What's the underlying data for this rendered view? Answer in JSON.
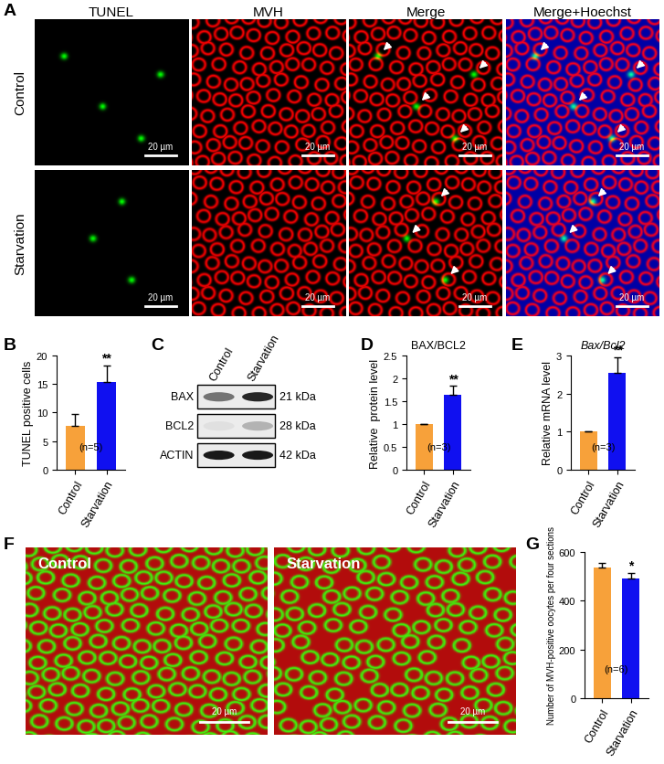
{
  "panels": {
    "A": {
      "letter": "A",
      "columns": [
        "TUNEL",
        "MVH",
        "Merge",
        "Merge+Hoechst"
      ],
      "rows": [
        "Control",
        "Starvation"
      ],
      "scale_bar": "20 µm"
    },
    "C": {
      "letter": "C",
      "lanes": [
        "Control",
        "Starvation"
      ],
      "bands": [
        {
          "protein": "BAX",
          "size": "21 kDa"
        },
        {
          "protein": "BCL2",
          "size": "28 kDa"
        },
        {
          "protein": "ACTIN",
          "size": "42 kDa"
        }
      ]
    },
    "F": {
      "letter": "F",
      "images": [
        "Control",
        "Starvation"
      ],
      "scale_bar": "20 µm"
    }
  },
  "chart_data": [
    {
      "letter": "B",
      "type": "bar",
      "categories": [
        "Control",
        "Starvation"
      ],
      "values": [
        7.7,
        15.3
      ],
      "errors": [
        2.0,
        3.0
      ],
      "colors": [
        "#F7A13A",
        "#1010F0"
      ],
      "ylabel": "TUNEL positive cells",
      "ylim": [
        0,
        20
      ],
      "yticks": [
        0,
        5,
        10,
        15,
        20
      ],
      "significance": {
        "Starvation": "**"
      },
      "note": "(n=5)"
    },
    {
      "letter": "D",
      "type": "bar",
      "title": "BAX/BCL2",
      "categories": [
        "Control",
        "Starvation"
      ],
      "values": [
        1,
        1.63
      ],
      "errors": [
        0,
        0.2
      ],
      "colors": [
        "#F7A13A",
        "#1010F0"
      ],
      "ylabel": "Relative  protein level",
      "ylim": [
        0,
        2.5
      ],
      "yticks": [
        0,
        0.5,
        1,
        1.5,
        2,
        2.5
      ],
      "significance": {
        "Starvation": "**"
      },
      "note": "(n=3)"
    },
    {
      "letter": "E",
      "type": "bar",
      "title": "Bax/Bcl2",
      "categories": [
        "Control",
        "Starvation"
      ],
      "values": [
        1,
        2.55
      ],
      "errors": [
        0,
        0.4
      ],
      "colors": [
        "#F7A13A",
        "#1010F0"
      ],
      "ylabel": "Relative mRNA level",
      "ylim": [
        0,
        3
      ],
      "yticks": [
        0,
        1,
        2,
        3
      ],
      "significance": {
        "Starvation": "**"
      },
      "note": "(n=3)"
    },
    {
      "letter": "G",
      "type": "bar",
      "categories": [
        "Control",
        "Starvation"
      ],
      "values": [
        535,
        490
      ],
      "errors": [
        20,
        25
      ],
      "colors": [
        "#F7A13A",
        "#1010F0"
      ],
      "ylabel": "Number of MVH-positive oocytes per four sections",
      "ylim": [
        0,
        600
      ],
      "yticks": [
        0,
        200,
        400,
        600
      ],
      "significance": {
        "Starvation": "*"
      },
      "note": "(n=6)"
    }
  ]
}
